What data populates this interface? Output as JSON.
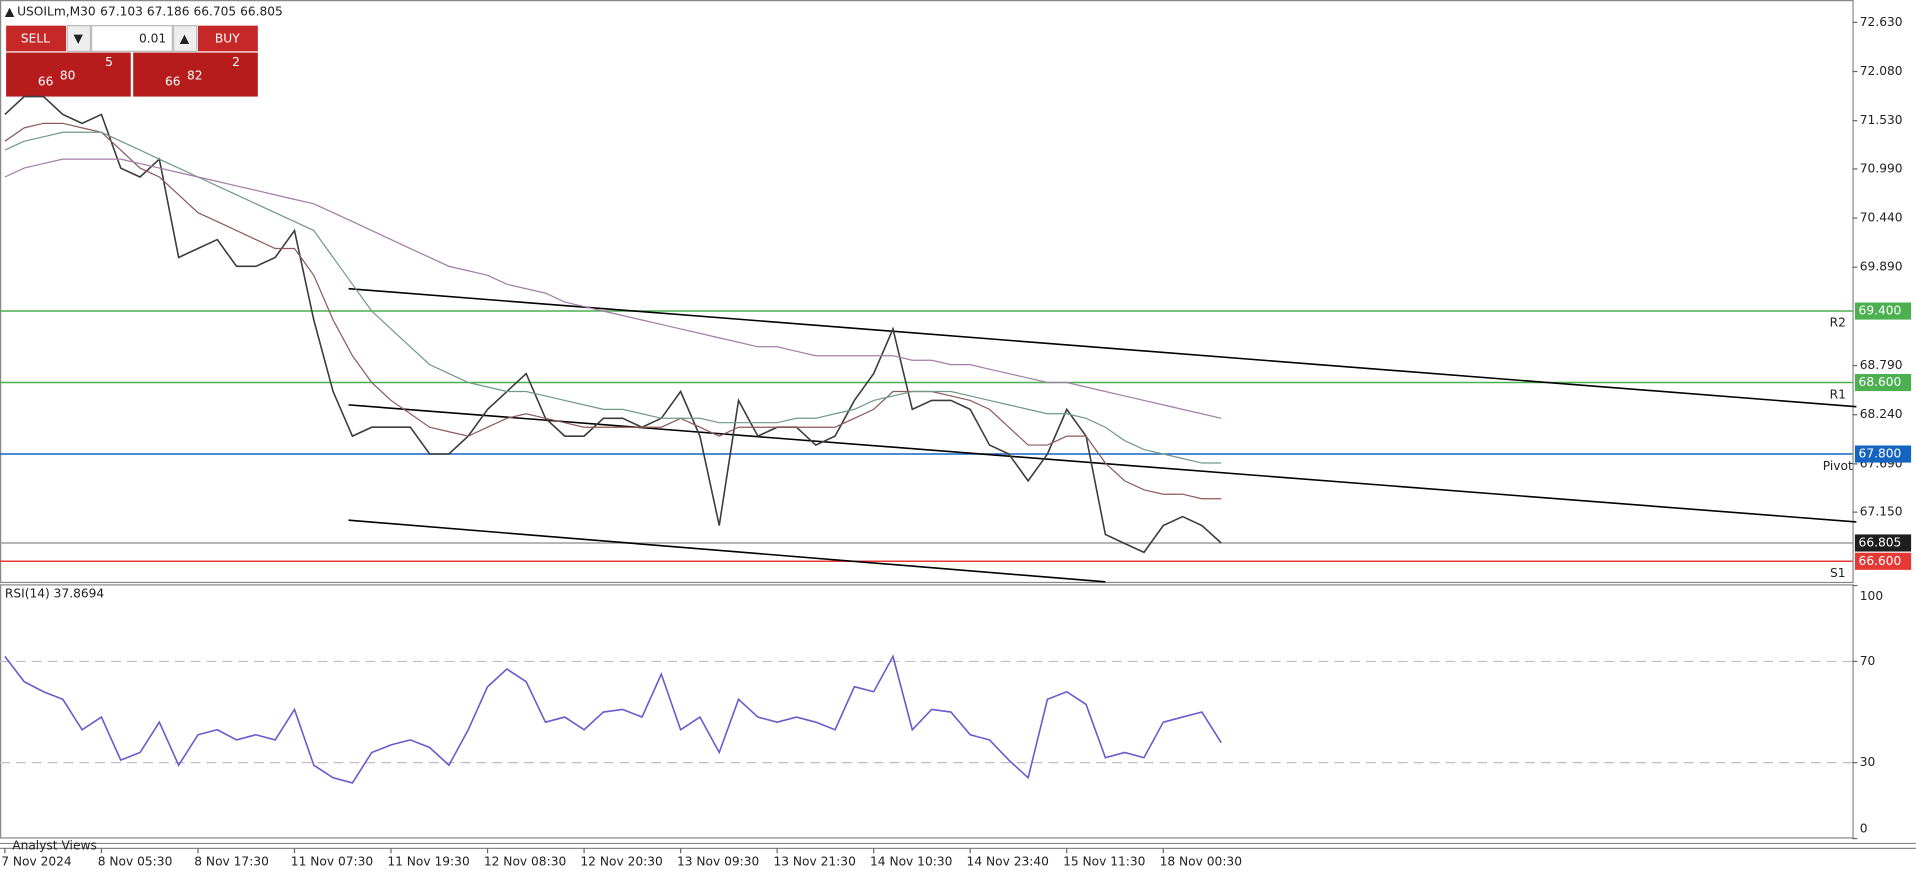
{
  "header": {
    "symbol": "USOILm,M30",
    "ohlc": "67.103 67.186 66.705 66.805"
  },
  "trade_panel": {
    "sell": "SELL",
    "buy": "BUY",
    "lot": "0.01",
    "sell_price": {
      "big": "66",
      "main": "80",
      "small": "5"
    },
    "buy_price": {
      "big": "66",
      "main": "82",
      "small": "2"
    }
  },
  "footer": {
    "analyst_views": "Analyst Views"
  },
  "chart_data": [
    {
      "type": "line",
      "categories": [
        "7 Nov 2024",
        null,
        null,
        null,
        null,
        "8 Nov 05:30",
        null,
        null,
        null,
        null,
        "8 Nov 17:30",
        null,
        null,
        null,
        null,
        "11 Nov 07:30",
        null,
        null,
        null,
        null,
        "11 Nov 19:30",
        null,
        null,
        null,
        null,
        "12 Nov 08:30",
        null,
        null,
        null,
        null,
        "12 Nov 20:30",
        null,
        null,
        null,
        null,
        "13 Nov 09:30",
        null,
        null,
        null,
        null,
        "13 Nov 21:30",
        null,
        null,
        null,
        null,
        "14 Nov 10:30",
        null,
        null,
        null,
        null,
        "14 Nov 23:40",
        null,
        null,
        null,
        null,
        "15 Nov 11:30",
        null,
        null,
        null,
        null,
        "18 Nov 00:30",
        null,
        null,
        null
      ],
      "series": [
        {
          "color": "#3c3c3c",
          "values": [
            71.6,
            71.8,
            71.8,
            71.6,
            71.5,
            71.6,
            71.0,
            70.9,
            71.1,
            70.0,
            70.1,
            70.2,
            69.9,
            69.9,
            70.0,
            70.3,
            69.3,
            68.5,
            68.0,
            68.1,
            68.1,
            68.1,
            67.8,
            67.8,
            68.0,
            68.3,
            68.5,
            68.7,
            68.2,
            68.0,
            68.0,
            68.2,
            68.2,
            68.1,
            68.2,
            68.5,
            68.0,
            67.0,
            68.4,
            68.0,
            68.1,
            68.1,
            67.9,
            68.0,
            68.4,
            68.7,
            69.2,
            68.3,
            68.4,
            68.4,
            68.3,
            67.9,
            67.8,
            67.5,
            67.8,
            68.3,
            68.0,
            66.9,
            66.8,
            66.7,
            67.0,
            67.1,
            67.0,
            66.805
          ]
        },
        {
          "color": "#8e5a5a",
          "values": [
            71.3,
            71.45,
            71.5,
            71.5,
            71.45,
            71.4,
            71.2,
            71.0,
            70.9,
            70.7,
            70.5,
            70.4,
            70.3,
            70.2,
            70.1,
            70.1,
            69.8,
            69.3,
            68.9,
            68.6,
            68.4,
            68.25,
            68.1,
            68.05,
            68.0,
            68.1,
            68.2,
            68.25,
            68.2,
            68.15,
            68.1,
            68.1,
            68.1,
            68.1,
            68.1,
            68.2,
            68.1,
            68.0,
            68.1,
            68.1,
            68.1,
            68.1,
            68.1,
            68.1,
            68.2,
            68.3,
            68.5,
            68.5,
            68.5,
            68.45,
            68.4,
            68.3,
            68.1,
            67.9,
            67.9,
            68.0,
            68.0,
            67.7,
            67.5,
            67.4,
            67.35,
            67.35,
            67.3,
            67.3
          ]
        },
        {
          "color": "#6f9a86",
          "values": [
            71.2,
            71.3,
            71.35,
            71.4,
            71.4,
            71.4,
            71.3,
            71.2,
            71.1,
            71.0,
            70.9,
            70.8,
            70.7,
            70.6,
            70.5,
            70.4,
            70.3,
            70.0,
            69.7,
            69.4,
            69.2,
            69.0,
            68.8,
            68.7,
            68.6,
            68.55,
            68.5,
            68.5,
            68.45,
            68.4,
            68.35,
            68.3,
            68.3,
            68.25,
            68.2,
            68.2,
            68.2,
            68.15,
            68.15,
            68.15,
            68.15,
            68.2,
            68.2,
            68.25,
            68.3,
            68.4,
            68.45,
            68.5,
            68.5,
            68.5,
            68.45,
            68.4,
            68.35,
            68.3,
            68.25,
            68.25,
            68.2,
            68.1,
            67.95,
            67.85,
            67.8,
            67.75,
            67.7,
            67.7
          ]
        },
        {
          "color": "#a57ba8",
          "values": [
            70.9,
            71.0,
            71.05,
            71.1,
            71.1,
            71.1,
            71.1,
            71.05,
            71.0,
            70.95,
            70.9,
            70.85,
            70.8,
            70.75,
            70.7,
            70.65,
            70.6,
            70.5,
            70.4,
            70.3,
            70.2,
            70.1,
            70.0,
            69.9,
            69.85,
            69.8,
            69.7,
            69.65,
            69.6,
            69.5,
            69.45,
            69.4,
            69.35,
            69.3,
            69.25,
            69.2,
            69.15,
            69.1,
            69.05,
            69.0,
            69.0,
            68.95,
            68.9,
            68.9,
            68.9,
            68.9,
            68.9,
            68.85,
            68.85,
            68.8,
            68.8,
            68.75,
            68.7,
            68.65,
            68.6,
            68.6,
            68.55,
            68.5,
            68.45,
            68.4,
            68.35,
            68.3,
            68.25,
            68.2
          ]
        }
      ],
      "ylim": [
        66.37,
        72.88
      ],
      "yticks": [
        {
          "value": 72.63,
          "label": "72.630"
        },
        {
          "value": 72.08,
          "label": "72.080"
        },
        {
          "value": 71.53,
          "label": "71.530"
        },
        {
          "value": 70.99,
          "label": "70.990"
        },
        {
          "value": 70.44,
          "label": "70.440"
        },
        {
          "value": 69.89,
          "label": "69.890"
        },
        {
          "value": 68.79,
          "label": "68.790"
        },
        {
          "value": 68.24,
          "label": "68.240"
        },
        {
          "value": 67.69,
          "label": "67.690"
        },
        {
          "value": 67.15,
          "label": "67.150"
        }
      ],
      "levels": [
        {
          "name": "R2",
          "value": 69.4,
          "label": "69.400",
          "color": "#4caf50"
        },
        {
          "name": "R1",
          "value": 68.6,
          "label": "68.600",
          "color": "#4caf50"
        },
        {
          "name": "Pivot",
          "value": 67.8,
          "label": "67.800",
          "color": "#1565c0"
        },
        {
          "value": 66.805,
          "label": "66.805",
          "color": "#9e9e9e"
        },
        {
          "name": "S1",
          "value": 66.6,
          "label": "66.600",
          "color": "#e53935"
        }
      ],
      "trendlines": [
        {
          "x": [
            17.8,
            95.9
          ],
          "y": [
            69.65,
            68.33
          ]
        },
        {
          "x": [
            17.8,
            95.9
          ],
          "y": [
            68.35,
            67.04
          ]
        },
        {
          "x": [
            17.8,
            57.0
          ],
          "y": [
            67.06,
            66.37
          ]
        }
      ]
    },
    {
      "type": "line",
      "title": "RSI(14) 37.8694",
      "series": [
        {
          "color": "#6a5acd",
          "values": [
            72,
            62,
            58,
            55,
            43,
            48,
            31,
            34,
            46,
            29,
            41,
            43,
            39,
            41,
            39,
            51,
            29,
            24,
            22,
            34,
            37,
            39,
            36,
            29,
            43,
            60,
            67,
            62,
            46,
            48,
            43,
            50,
            51,
            48,
            65,
            43,
            48,
            34,
            55,
            48,
            46,
            48,
            46,
            43,
            60,
            58,
            72,
            43,
            51,
            50,
            41,
            39,
            31,
            24,
            55,
            58,
            53,
            32,
            34,
            32,
            46,
            48,
            50,
            37.8694
          ]
        }
      ],
      "ylim": [
        0,
        100
      ],
      "yticks": [
        0,
        30,
        70,
        100
      ],
      "levels": [
        70,
        30
      ]
    }
  ]
}
